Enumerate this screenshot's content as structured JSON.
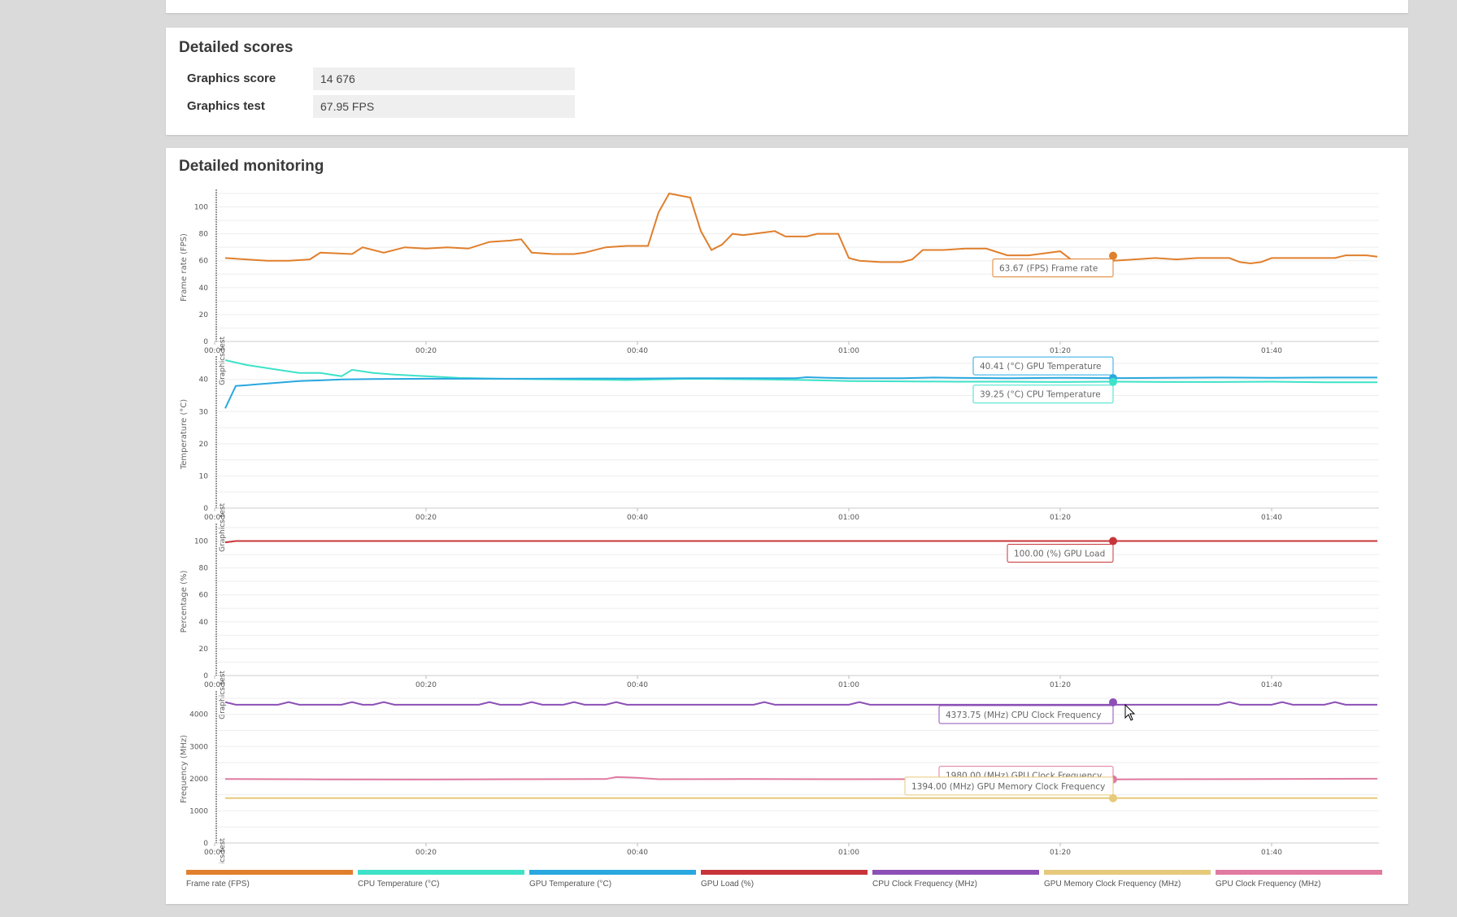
{
  "scores": {
    "title": "Detailed scores",
    "rows": [
      {
        "label": "Graphics score",
        "value": "14 676"
      },
      {
        "label": "Graphics test",
        "value": "67.95 FPS"
      }
    ]
  },
  "monitoring": {
    "title": "Detailed monitoring",
    "time_ticks": [
      "00:00",
      "00:20",
      "00:40",
      "01:00",
      "01:20",
      "01:40"
    ],
    "test_marker_label": "Graphics test"
  },
  "chart_data": [
    {
      "type": "line",
      "ylabel": "Frame rate (FPS)",
      "ylim": [
        0,
        110
      ],
      "yticks": [
        0,
        20,
        40,
        60,
        80,
        100
      ],
      "xlabel": "",
      "xlim": [
        0,
        110
      ],
      "series": [
        {
          "name": "Frame rate (FPS)",
          "color": "#e07f2c",
          "points": [
            [
              1,
              62
            ],
            [
              3,
              61
            ],
            [
              5,
              60
            ],
            [
              7,
              60
            ],
            [
              9,
              61
            ],
            [
              10,
              66
            ],
            [
              13,
              65
            ],
            [
              14,
              70
            ],
            [
              16,
              66
            ],
            [
              18,
              70
            ],
            [
              20,
              69
            ],
            [
              22,
              70
            ],
            [
              24,
              69
            ],
            [
              26,
              74
            ],
            [
              28,
              75
            ],
            [
              29,
              76
            ],
            [
              30,
              66
            ],
            [
              32,
              65
            ],
            [
              34,
              65
            ],
            [
              35,
              66
            ],
            [
              37,
              70
            ],
            [
              39,
              71
            ],
            [
              41,
              71
            ],
            [
              42,
              96
            ],
            [
              43,
              110
            ],
            [
              45,
              107
            ],
            [
              46,
              82
            ],
            [
              47,
              68
            ],
            [
              48,
              72
            ],
            [
              49,
              80
            ],
            [
              50,
              79
            ],
            [
              51,
              80
            ],
            [
              53,
              82
            ],
            [
              54,
              78
            ],
            [
              56,
              78
            ],
            [
              57,
              80
            ],
            [
              59,
              80
            ],
            [
              60,
              62
            ],
            [
              61,
              60
            ],
            [
              63,
              59
            ],
            [
              65,
              59
            ],
            [
              66,
              61
            ],
            [
              67,
              68
            ],
            [
              69,
              68
            ],
            [
              71,
              69
            ],
            [
              73,
              69
            ],
            [
              75,
              64
            ],
            [
              77,
              64
            ],
            [
              79,
              66
            ],
            [
              80,
              67
            ],
            [
              81,
              61
            ],
            [
              83,
              60
            ],
            [
              85,
              60
            ],
            [
              87,
              61
            ],
            [
              89,
              62
            ],
            [
              91,
              61
            ],
            [
              93,
              62
            ],
            [
              95,
              62
            ],
            [
              96,
              62
            ],
            [
              97,
              59
            ],
            [
              98,
              58
            ],
            [
              99,
              59
            ],
            [
              100,
              62
            ],
            [
              102,
              62
            ],
            [
              104,
              62
            ],
            [
              106,
              62
            ],
            [
              107,
              64
            ],
            [
              108,
              64
            ],
            [
              109,
              64
            ],
            [
              110,
              63
            ]
          ]
        }
      ],
      "tooltips": [
        {
          "text": "63.67 (FPS) Frame rate",
          "color": "#e07f2c",
          "x": 85,
          "y": 63.67
        }
      ]
    },
    {
      "type": "line",
      "ylabel": "Temperature (°C)",
      "ylim": [
        0,
        46
      ],
      "yticks": [
        0,
        10,
        20,
        30,
        40
      ],
      "xlabel": "",
      "xlim": [
        0,
        110
      ],
      "series": [
        {
          "name": "CPU Temperature (°C)",
          "color": "#3ee2c8",
          "points": [
            [
              1,
              46
            ],
            [
              3,
              44.5
            ],
            [
              6,
              43
            ],
            [
              8,
              42
            ],
            [
              10,
              42
            ],
            [
              12,
              41
            ],
            [
              13,
              43
            ],
            [
              15,
              42
            ],
            [
              17,
              41.5
            ],
            [
              20,
              41
            ],
            [
              23,
              40.5
            ],
            [
              27,
              40.2
            ],
            [
              33,
              40
            ],
            [
              39,
              39.8
            ],
            [
              45,
              40.2
            ],
            [
              52,
              40
            ],
            [
              56,
              39.8
            ],
            [
              60,
              39.5
            ],
            [
              65,
              39.4
            ],
            [
              70,
              39.3
            ],
            [
              75,
              39.3
            ],
            [
              80,
              39.2
            ],
            [
              85,
              39.3
            ],
            [
              90,
              39.2
            ],
            [
              95,
              39.2
            ],
            [
              100,
              39.3
            ],
            [
              105,
              39.1
            ],
            [
              110,
              39.1
            ]
          ]
        },
        {
          "name": "GPU Temperature (°C)",
          "color": "#29a8e0",
          "points": [
            [
              1,
              31
            ],
            [
              2,
              38
            ],
            [
              3,
              38.2
            ],
            [
              4,
              38.5
            ],
            [
              6,
              39
            ],
            [
              8,
              39.5
            ],
            [
              10,
              39.7
            ],
            [
              12,
              40
            ],
            [
              15,
              40.1
            ],
            [
              20,
              40.2
            ],
            [
              25,
              40.2
            ],
            [
              30,
              40.2
            ],
            [
              35,
              40.3
            ],
            [
              40,
              40.3
            ],
            [
              45,
              40.4
            ],
            [
              50,
              40.4
            ],
            [
              55,
              40.4
            ],
            [
              56,
              40.7
            ],
            [
              58,
              40.5
            ],
            [
              60,
              40.4
            ],
            [
              65,
              40.4
            ],
            [
              68,
              40.6
            ],
            [
              70,
              40.5
            ],
            [
              75,
              40.4
            ],
            [
              80,
              40.5
            ],
            [
              85,
              40.41
            ],
            [
              90,
              40.5
            ],
            [
              95,
              40.6
            ],
            [
              100,
              40.5
            ],
            [
              105,
              40.6
            ],
            [
              110,
              40.6
            ]
          ]
        }
      ],
      "tooltips": [
        {
          "text": "40.41 (°C) GPU Temperature",
          "color": "#29a8e0",
          "x": 85,
          "y": 40.41
        },
        {
          "text": "39.25 (°C) CPU Temperature",
          "color": "#3ee2c8",
          "x": 85,
          "y": 39.25
        }
      ]
    },
    {
      "type": "line",
      "ylabel": "Percentage (%)",
      "ylim": [
        0,
        110
      ],
      "yticks": [
        0,
        20,
        40,
        60,
        80,
        100
      ],
      "xlabel": "",
      "xlim": [
        0,
        110
      ],
      "series": [
        {
          "name": "GPU Load (%)",
          "color": "#c7353a",
          "points": [
            [
              1,
              99
            ],
            [
              2,
              100
            ],
            [
              110,
              100
            ]
          ]
        }
      ],
      "tooltips": [
        {
          "text": "100.00 (%) GPU Load",
          "color": "#c7353a",
          "x": 85,
          "y": 100
        }
      ]
    },
    {
      "type": "line",
      "ylabel": "Frequency (MHz)",
      "ylim": [
        0,
        4600
      ],
      "yticks": [
        0,
        1000,
        2000,
        3000,
        4000
      ],
      "xlabel": "",
      "xlim": [
        0,
        110
      ],
      "series": [
        {
          "name": "CPU Clock Frequency (MHz)",
          "color": "#8c4fb6",
          "points": [
            [
              1,
              4380
            ],
            [
              2,
              4300
            ],
            [
              4,
              4300
            ],
            [
              6,
              4300
            ],
            [
              7,
              4380
            ],
            [
              8,
              4300
            ],
            [
              12,
              4300
            ],
            [
              13,
              4380
            ],
            [
              14,
              4300
            ],
            [
              15,
              4300
            ],
            [
              16,
              4380
            ],
            [
              17,
              4300
            ],
            [
              25,
              4300
            ],
            [
              26,
              4380
            ],
            [
              27,
              4300
            ],
            [
              29,
              4300
            ],
            [
              30,
              4380
            ],
            [
              31,
              4300
            ],
            [
              33,
              4300
            ],
            [
              34,
              4380
            ],
            [
              35,
              4300
            ],
            [
              37,
              4300
            ],
            [
              38,
              4380
            ],
            [
              39,
              4300
            ],
            [
              51,
              4300
            ],
            [
              52,
              4380
            ],
            [
              53,
              4300
            ],
            [
              60,
              4300
            ],
            [
              61,
              4380
            ],
            [
              62,
              4300
            ],
            [
              95,
              4300
            ],
            [
              96,
              4380
            ],
            [
              97,
              4300
            ],
            [
              100,
              4300
            ],
            [
              101,
              4380
            ],
            [
              102,
              4300
            ],
            [
              105,
              4300
            ],
            [
              106,
              4380
            ],
            [
              107,
              4300
            ],
            [
              110,
              4300
            ]
          ]
        },
        {
          "name": "GPU Clock Frequency (MHz)",
          "color": "#e07aa0",
          "points": [
            [
              1,
              1990
            ],
            [
              10,
              1980
            ],
            [
              20,
              1975
            ],
            [
              30,
              1985
            ],
            [
              37,
              1990
            ],
            [
              38,
              2050
            ],
            [
              39,
              2040
            ],
            [
              40,
              2030
            ],
            [
              42,
              1985
            ],
            [
              50,
              1990
            ],
            [
              60,
              1985
            ],
            [
              70,
              1990
            ],
            [
              80,
              1980
            ],
            [
              85,
              1980
            ],
            [
              90,
              1985
            ],
            [
              100,
              1990
            ],
            [
              110,
              2000
            ]
          ]
        },
        {
          "name": "GPU Memory Clock Frequency (MHz)",
          "color": "#e6c97a",
          "points": [
            [
              1,
              1394
            ],
            [
              110,
              1394
            ]
          ]
        }
      ],
      "tooltips": [
        {
          "text": "4373.75 (MHz) CPU Clock Frequency",
          "color": "#8c4fb6",
          "x": 85,
          "y": 4373.75
        },
        {
          "text": "1980.00 (MHz) GPU Clock Frequency",
          "color": "#e07aa0",
          "x": 85,
          "y": 1980
        },
        {
          "text": "1394.00 (MHz) GPU Memory Clock Frequency",
          "color": "#e6c97a",
          "x": 85,
          "y": 1394
        }
      ]
    }
  ],
  "legend": [
    {
      "label": "Frame rate (FPS)",
      "color": "#e07f2c"
    },
    {
      "label": "CPU Temperature (°C)",
      "color": "#3ee2c8"
    },
    {
      "label": "GPU Temperature (°C)",
      "color": "#29a8e0"
    },
    {
      "label": "GPU Load (%)",
      "color": "#c7353a"
    },
    {
      "label": "CPU Clock Frequency (MHz)",
      "color": "#8c4fb6"
    },
    {
      "label": "GPU Memory Clock Frequency (MHz)",
      "color": "#e6c97a"
    },
    {
      "label": "GPU Clock Frequency (MHz)",
      "color": "#e07aa0"
    }
  ]
}
